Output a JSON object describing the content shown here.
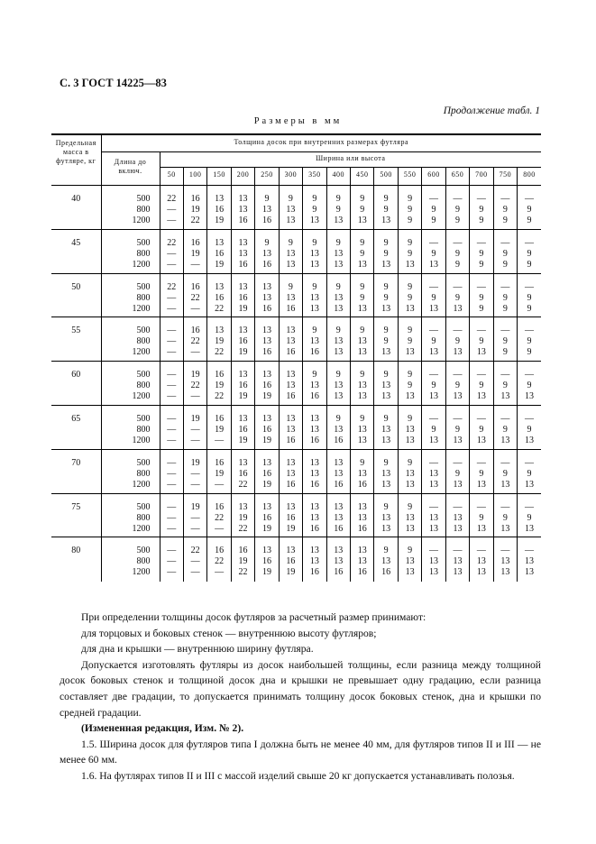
{
  "header": "С. 3 ГОСТ 14225—83",
  "continuation": "Продолжение табл. 1",
  "units": "Размеры в мм",
  "table": {
    "col_mass": "Предельная масса в футляре, кг",
    "col_length": "Длина до включ.",
    "group_title": "Толщина досок при внутренних размерах футляра",
    "subgroup_title": "Ширина или высота",
    "widths": [
      "50",
      "100",
      "150",
      "200",
      "250",
      "300",
      "350",
      "400",
      "450",
      "500",
      "550",
      "600",
      "650",
      "700",
      "750",
      "800"
    ],
    "groups": [
      {
        "mass": "40",
        "lengths": [
          "500",
          "800",
          "1200"
        ],
        "rows": [
          [
            "22",
            "16",
            "13",
            "13",
            "9",
            "9",
            "9",
            "9",
            "9",
            "9",
            "9",
            "—",
            "—",
            "—",
            "—",
            "—"
          ],
          [
            "—",
            "19",
            "16",
            "13",
            "13",
            "13",
            "9",
            "9",
            "9",
            "9",
            "9",
            "9",
            "9",
            "9",
            "9",
            "9"
          ],
          [
            "—",
            "22",
            "19",
            "16",
            "16",
            "13",
            "13",
            "13",
            "13",
            "13",
            "9",
            "9",
            "9",
            "9",
            "9",
            "9"
          ]
        ]
      },
      {
        "mass": "45",
        "lengths": [
          "500",
          "800",
          "1200"
        ],
        "rows": [
          [
            "22",
            "16",
            "13",
            "13",
            "9",
            "9",
            "9",
            "9",
            "9",
            "9",
            "9",
            "—",
            "—",
            "—",
            "—",
            "—"
          ],
          [
            "—",
            "19",
            "16",
            "13",
            "13",
            "13",
            "13",
            "13",
            "9",
            "9",
            "9",
            "9",
            "9",
            "9",
            "9",
            "9"
          ],
          [
            "—",
            "—",
            "19",
            "16",
            "16",
            "13",
            "13",
            "13",
            "13",
            "13",
            "13",
            "13",
            "9",
            "9",
            "9",
            "9"
          ]
        ]
      },
      {
        "mass": "50",
        "lengths": [
          "500",
          "800",
          "1200"
        ],
        "rows": [
          [
            "22",
            "16",
            "13",
            "13",
            "13",
            "9",
            "9",
            "9",
            "9",
            "9",
            "9",
            "—",
            "—",
            "—",
            "—",
            "—"
          ],
          [
            "—",
            "22",
            "16",
            "16",
            "13",
            "13",
            "13",
            "13",
            "9",
            "9",
            "9",
            "9",
            "9",
            "9",
            "9",
            "9"
          ],
          [
            "—",
            "—",
            "22",
            "19",
            "16",
            "16",
            "13",
            "13",
            "13",
            "13",
            "13",
            "13",
            "13",
            "9",
            "9",
            "9"
          ]
        ]
      },
      {
        "mass": "55",
        "lengths": [
          "500",
          "800",
          "1200"
        ],
        "rows": [
          [
            "—",
            "16",
            "13",
            "13",
            "13",
            "13",
            "9",
            "9",
            "9",
            "9",
            "9",
            "—",
            "—",
            "—",
            "—",
            "—"
          ],
          [
            "—",
            "22",
            "19",
            "16",
            "13",
            "13",
            "13",
            "13",
            "13",
            "9",
            "9",
            "9",
            "9",
            "9",
            "9",
            "9"
          ],
          [
            "—",
            "—",
            "22",
            "19",
            "16",
            "16",
            "16",
            "13",
            "13",
            "13",
            "13",
            "13",
            "13",
            "13",
            "9",
            "9"
          ]
        ]
      },
      {
        "mass": "60",
        "lengths": [
          "500",
          "800",
          "1200"
        ],
        "rows": [
          [
            "—",
            "19",
            "16",
            "13",
            "13",
            "13",
            "9",
            "9",
            "9",
            "9",
            "9",
            "—",
            "—",
            "—",
            "—",
            "—"
          ],
          [
            "—",
            "22",
            "19",
            "16",
            "16",
            "13",
            "13",
            "13",
            "13",
            "13",
            "9",
            "9",
            "9",
            "9",
            "9",
            "9"
          ],
          [
            "—",
            "—",
            "22",
            "19",
            "19",
            "16",
            "16",
            "13",
            "13",
            "13",
            "13",
            "13",
            "13",
            "13",
            "13",
            "13"
          ]
        ]
      },
      {
        "mass": "65",
        "lengths": [
          "500",
          "800",
          "1200"
        ],
        "rows": [
          [
            "—",
            "19",
            "16",
            "13",
            "13",
            "13",
            "13",
            "9",
            "9",
            "9",
            "9",
            "—",
            "—",
            "—",
            "—",
            "—"
          ],
          [
            "—",
            "—",
            "19",
            "16",
            "16",
            "13",
            "13",
            "13",
            "13",
            "13",
            "13",
            "9",
            "9",
            "9",
            "9",
            "9"
          ],
          [
            "—",
            "—",
            "—",
            "19",
            "19",
            "16",
            "16",
            "16",
            "13",
            "13",
            "13",
            "13",
            "13",
            "13",
            "13",
            "13"
          ]
        ]
      },
      {
        "mass": "70",
        "lengths": [
          "500",
          "800",
          "1200"
        ],
        "rows": [
          [
            "—",
            "19",
            "16",
            "13",
            "13",
            "13",
            "13",
            "13",
            "9",
            "9",
            "9",
            "—",
            "—",
            "—",
            "—",
            "—"
          ],
          [
            "—",
            "—",
            "19",
            "16",
            "16",
            "13",
            "13",
            "13",
            "13",
            "13",
            "13",
            "13",
            "9",
            "9",
            "9",
            "9"
          ],
          [
            "—",
            "—",
            "—",
            "22",
            "19",
            "16",
            "16",
            "16",
            "16",
            "13",
            "13",
            "13",
            "13",
            "13",
            "13",
            "13"
          ]
        ]
      },
      {
        "mass": "75",
        "lengths": [
          "500",
          "800",
          "1200"
        ],
        "rows": [
          [
            "—",
            "19",
            "16",
            "13",
            "13",
            "13",
            "13",
            "13",
            "13",
            "9",
            "9",
            "—",
            "—",
            "—",
            "—",
            "—"
          ],
          [
            "—",
            "—",
            "22",
            "19",
            "16",
            "16",
            "13",
            "13",
            "13",
            "13",
            "13",
            "13",
            "13",
            "9",
            "9",
            "9"
          ],
          [
            "—",
            "—",
            "—",
            "22",
            "19",
            "19",
            "16",
            "16",
            "16",
            "13",
            "13",
            "13",
            "13",
            "13",
            "13",
            "13"
          ]
        ]
      },
      {
        "mass": "80",
        "lengths": [
          "500",
          "800",
          "1200"
        ],
        "rows": [
          [
            "—",
            "22",
            "16",
            "16",
            "13",
            "13",
            "13",
            "13",
            "13",
            "9",
            "9",
            "—",
            "—",
            "—",
            "—",
            "—"
          ],
          [
            "—",
            "—",
            "22",
            "19",
            "16",
            "16",
            "13",
            "13",
            "13",
            "13",
            "13",
            "13",
            "13",
            "13",
            "13",
            "13"
          ],
          [
            "—",
            "—",
            "—",
            "22",
            "19",
            "19",
            "16",
            "16",
            "16",
            "16",
            "13",
            "13",
            "13",
            "13",
            "13",
            "13"
          ]
        ]
      }
    ]
  },
  "text": {
    "p1": "При определении толщины досок футляров за расчетный размер принимают:",
    "p2": "для торцовых и боковых стенок — внутреннюю высоту футляров;",
    "p3": "для дна и крышки — внутреннюю ширину футляра.",
    "p4": "Допускается изготовлять футляры из досок наибольшей толщины, если разница между толщиной досок боковых стенок и толщиной досок дна и крышки не превышает одну градацию, если разница составляет две градации, то допускается принимать толщину досок боковых стенок, дна и крышки по средней градации.",
    "p5": "(Измененная редакция, Изм. № 2).",
    "p6": "1.5. Ширина досок для футляров типа I должна быть не менее 40 мм, для футляров типов II и III — не менее 60 мм.",
    "p7": "1.6. На футлярах типов II и III с массой изделий свыше 20 кг допускается устанавливать полозья."
  }
}
